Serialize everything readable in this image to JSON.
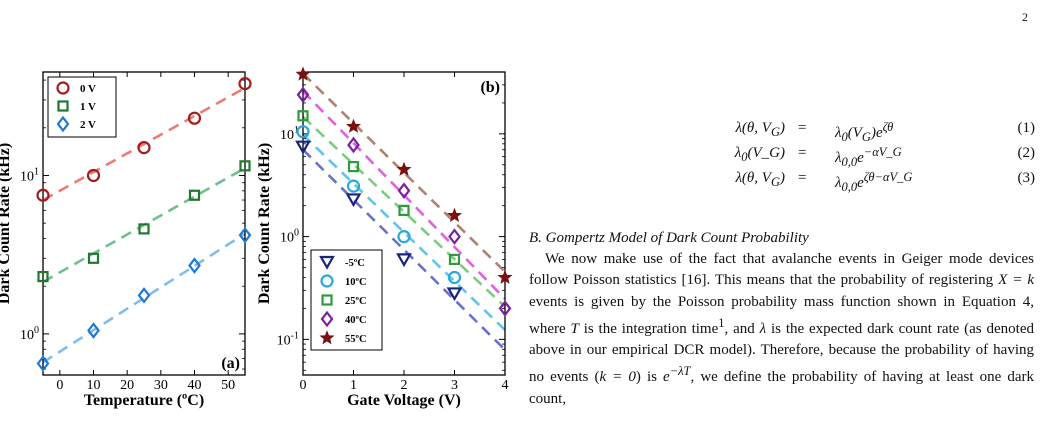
{
  "page_number": "2",
  "chart_data": [
    {
      "type": "scatter",
      "panel_label": "(a)",
      "xlabel": "Temperature (ºC)",
      "ylabel": "Dark Count Rate (kHz)",
      "xlim": [
        -5,
        55
      ],
      "ylim_log": [
        0.55,
        45
      ],
      "yscale": "log",
      "x_ticks": [
        "0",
        "10",
        "20",
        "30",
        "40",
        "50"
      ],
      "y_ticks": [
        {
          "base": "10",
          "exp": "0",
          "value": 1
        },
        {
          "base": "10",
          "exp": "1",
          "value": 10
        }
      ],
      "legend_position": "top-left",
      "series": [
        {
          "name": "0 V",
          "marker": "circle",
          "color": "#a61c1c",
          "fit_color": "#f07a72",
          "x": [
            -5,
            10,
            25,
            40,
            55
          ],
          "y": [
            7.5,
            10,
            15,
            23,
            38
          ]
        },
        {
          "name": "1 V",
          "marker": "square",
          "color": "#1f7a2e",
          "fit_color": "#6fbf8f",
          "x": [
            -5,
            10,
            25,
            40,
            55
          ],
          "y": [
            2.3,
            3,
            4.6,
            7.5,
            11.5
          ]
        },
        {
          "name": "2 V",
          "marker": "diamond",
          "color": "#1f78d1",
          "fit_color": "#7fbdf0",
          "x": [
            -5,
            10,
            25,
            40,
            55
          ],
          "y": [
            0.65,
            1.05,
            1.75,
            2.7,
            4.2
          ]
        }
      ]
    },
    {
      "type": "scatter",
      "panel_label": "(b)",
      "xlabel": "Gate Voltage (V)",
      "ylabel": "Dark Count Rate (kHz)",
      "xlim": [
        0,
        4
      ],
      "ylim_log": [
        0.045,
        40
      ],
      "yscale": "log",
      "x_ticks": [
        "0",
        "1",
        "2",
        "3",
        "4"
      ],
      "y_ticks": [
        {
          "base": "10",
          "exp": "-1",
          "value": 0.1
        },
        {
          "base": "10",
          "exp": "0",
          "value": 1
        },
        {
          "base": "10",
          "exp": "1",
          "value": 10
        }
      ],
      "legend_position": "bottom-left",
      "series": [
        {
          "name": "-5ºC",
          "marker": "triangle-down",
          "color": "#1a237e",
          "fit_color": "#6a6fd0",
          "x": [
            0,
            1,
            2,
            3
          ],
          "y": [
            7.5,
            2.3,
            0.6,
            0.28
          ]
        },
        {
          "name": "10ºC",
          "marker": "circle",
          "color": "#29a8e0",
          "fit_color": "#60c4ee",
          "x": [
            0,
            1,
            2,
            3
          ],
          "y": [
            10.5,
            3.1,
            1.0,
            0.4
          ]
        },
        {
          "name": "25ºC",
          "marker": "square",
          "color": "#2e9b3a",
          "fit_color": "#7dcc7d",
          "x": [
            0,
            1,
            2,
            3
          ],
          "y": [
            15,
            4.8,
            1.8,
            0.6
          ]
        },
        {
          "name": "40ºC",
          "marker": "diamond",
          "color": "#7b1fa2",
          "fit_color": "#e060e0",
          "x": [
            0,
            1,
            2,
            3,
            4
          ],
          "y": [
            24,
            7.8,
            2.8,
            1.0,
            0.2
          ]
        },
        {
          "name": "55ºC",
          "marker": "star",
          "color": "#7a1010",
          "fit_color": "#b08070",
          "x": [
            0,
            1,
            2,
            3,
            4
          ],
          "y": [
            38,
            11.8,
            4.5,
            1.6,
            0.4
          ]
        }
      ]
    }
  ],
  "equations": [
    {
      "lhs": "λ(θ, V",
      "lhs_sub": "G",
      "lhs_end": ")",
      "rhs_base": "λ",
      "rhs_sub": "0",
      "rhs_mid": "(V",
      "rhs_sub2": "G",
      "rhs_mid2": ")e",
      "rhs_sup": "ζθ",
      "num": "(1)"
    },
    {
      "lhs": "λ",
      "lhs_sub": "0",
      "lhs_end": "(V_G)",
      "rhs_base": "λ",
      "rhs_sub": "0,0",
      "rhs_mid": "e",
      "rhs_sub2": "",
      "rhs_mid2": "",
      "rhs_sup": "−αV_G",
      "num": "(2)"
    },
    {
      "lhs": "λ(θ, V",
      "lhs_sub": "G",
      "lhs_end": ")",
      "rhs_base": "λ",
      "rhs_sub": "0,0",
      "rhs_mid": "e",
      "rhs_sub2": "",
      "rhs_mid2": "",
      "rhs_sup": "ζθ−αV_G",
      "num": "(3)"
    }
  ],
  "eq_sign": "=",
  "section_heading": "B. Gompertz Model of Dark Count Probability",
  "paragraph": {
    "s1": "We now make use of the fact that avalanche events in Geiger mode devices follow Poisson statistics [16]. This means that the probability of registering ",
    "m1": "X = k",
    "s2": " events is given by the Poisson probability mass function shown in Equation 4, where ",
    "m2": "T",
    "s3": " is the integration time",
    "fn": "1",
    "s4": ", and ",
    "m3": "λ",
    "s5": " is the expected dark count rate (as denoted above in our empirical DCR model). Therefore, because the probability of having no events (",
    "m4": "k = 0",
    "s6": ") is ",
    "m5": "e",
    "m5sup": "−λT",
    "s7": ", we define the probability of having at least one dark count,"
  }
}
